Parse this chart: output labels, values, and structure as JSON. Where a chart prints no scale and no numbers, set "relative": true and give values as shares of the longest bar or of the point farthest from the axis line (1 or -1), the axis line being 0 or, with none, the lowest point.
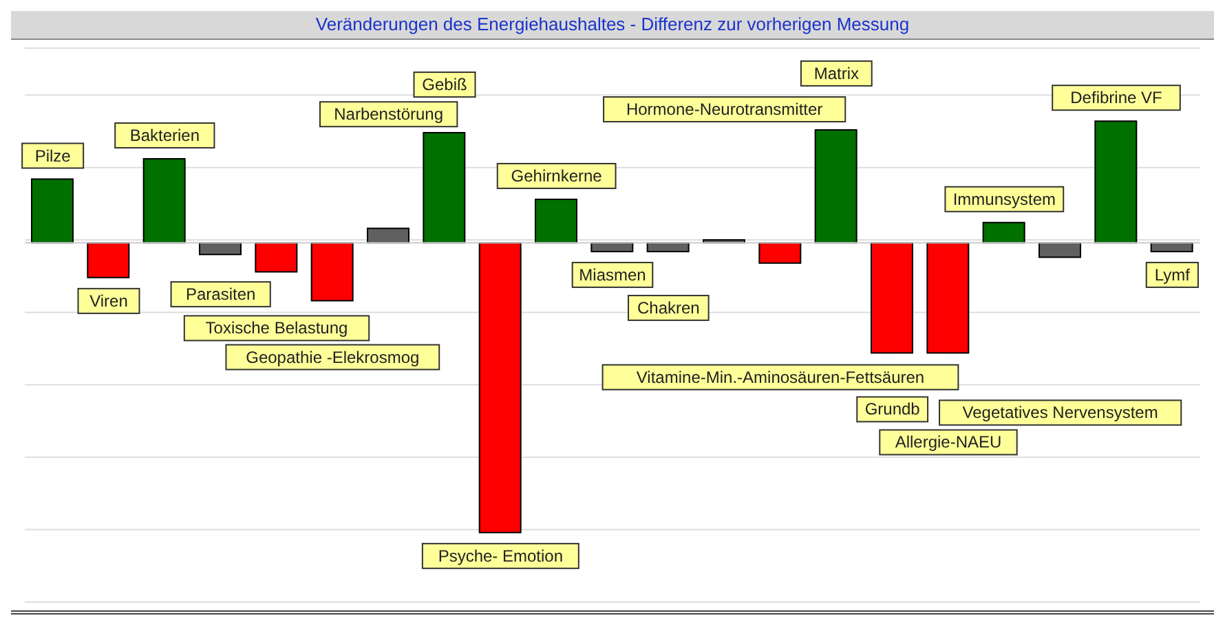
{
  "chart_data": {
    "type": "bar",
    "title": "Veränderungen des Energiehaushaltes - Differenz zur vorherigen Messung",
    "relative": true,
    "grid": "y",
    "categories": [
      "Pilze",
      "Viren",
      "Bakterien",
      "Parasiten",
      "Toxische Belastung",
      "Geopathie -Elekrosmog",
      "Narbenstörung",
      "Gebiß",
      "Psyche- Emotion",
      "Gehirnkerne",
      "Miasmen",
      "Chakren",
      "Hormone-Neurotransmitter",
      "Vitamine-Min.-Aminosäuren-Fettsäuren",
      "Matrix",
      "Grundb",
      "Allergie-NAEU",
      "Immunsystem",
      "Vegetatives Nervensystem",
      "Defibrine VF",
      "Lymf"
    ],
    "values": [
      0.22,
      -0.12,
      0.29,
      -0.04,
      -0.1,
      -0.2,
      0.05,
      0.38,
      -1,
      0.15,
      -0.03,
      -0.03,
      0.01,
      -0.07,
      0.39,
      -0.38,
      -0.38,
      0.07,
      -0.05,
      0.42,
      -0.03
    ],
    "colors": [
      "#007000",
      "#ff0000",
      "#007000",
      "#606060",
      "#ff0000",
      "#ff0000",
      "#606060",
      "#007000",
      "#ff0000",
      "#007000",
      "#606060",
      "#606060",
      "#606060",
      "#ff0000",
      "#007000",
      "#ff0000",
      "#ff0000",
      "#007000",
      "#606060",
      "#007000",
      "#606060"
    ]
  }
}
